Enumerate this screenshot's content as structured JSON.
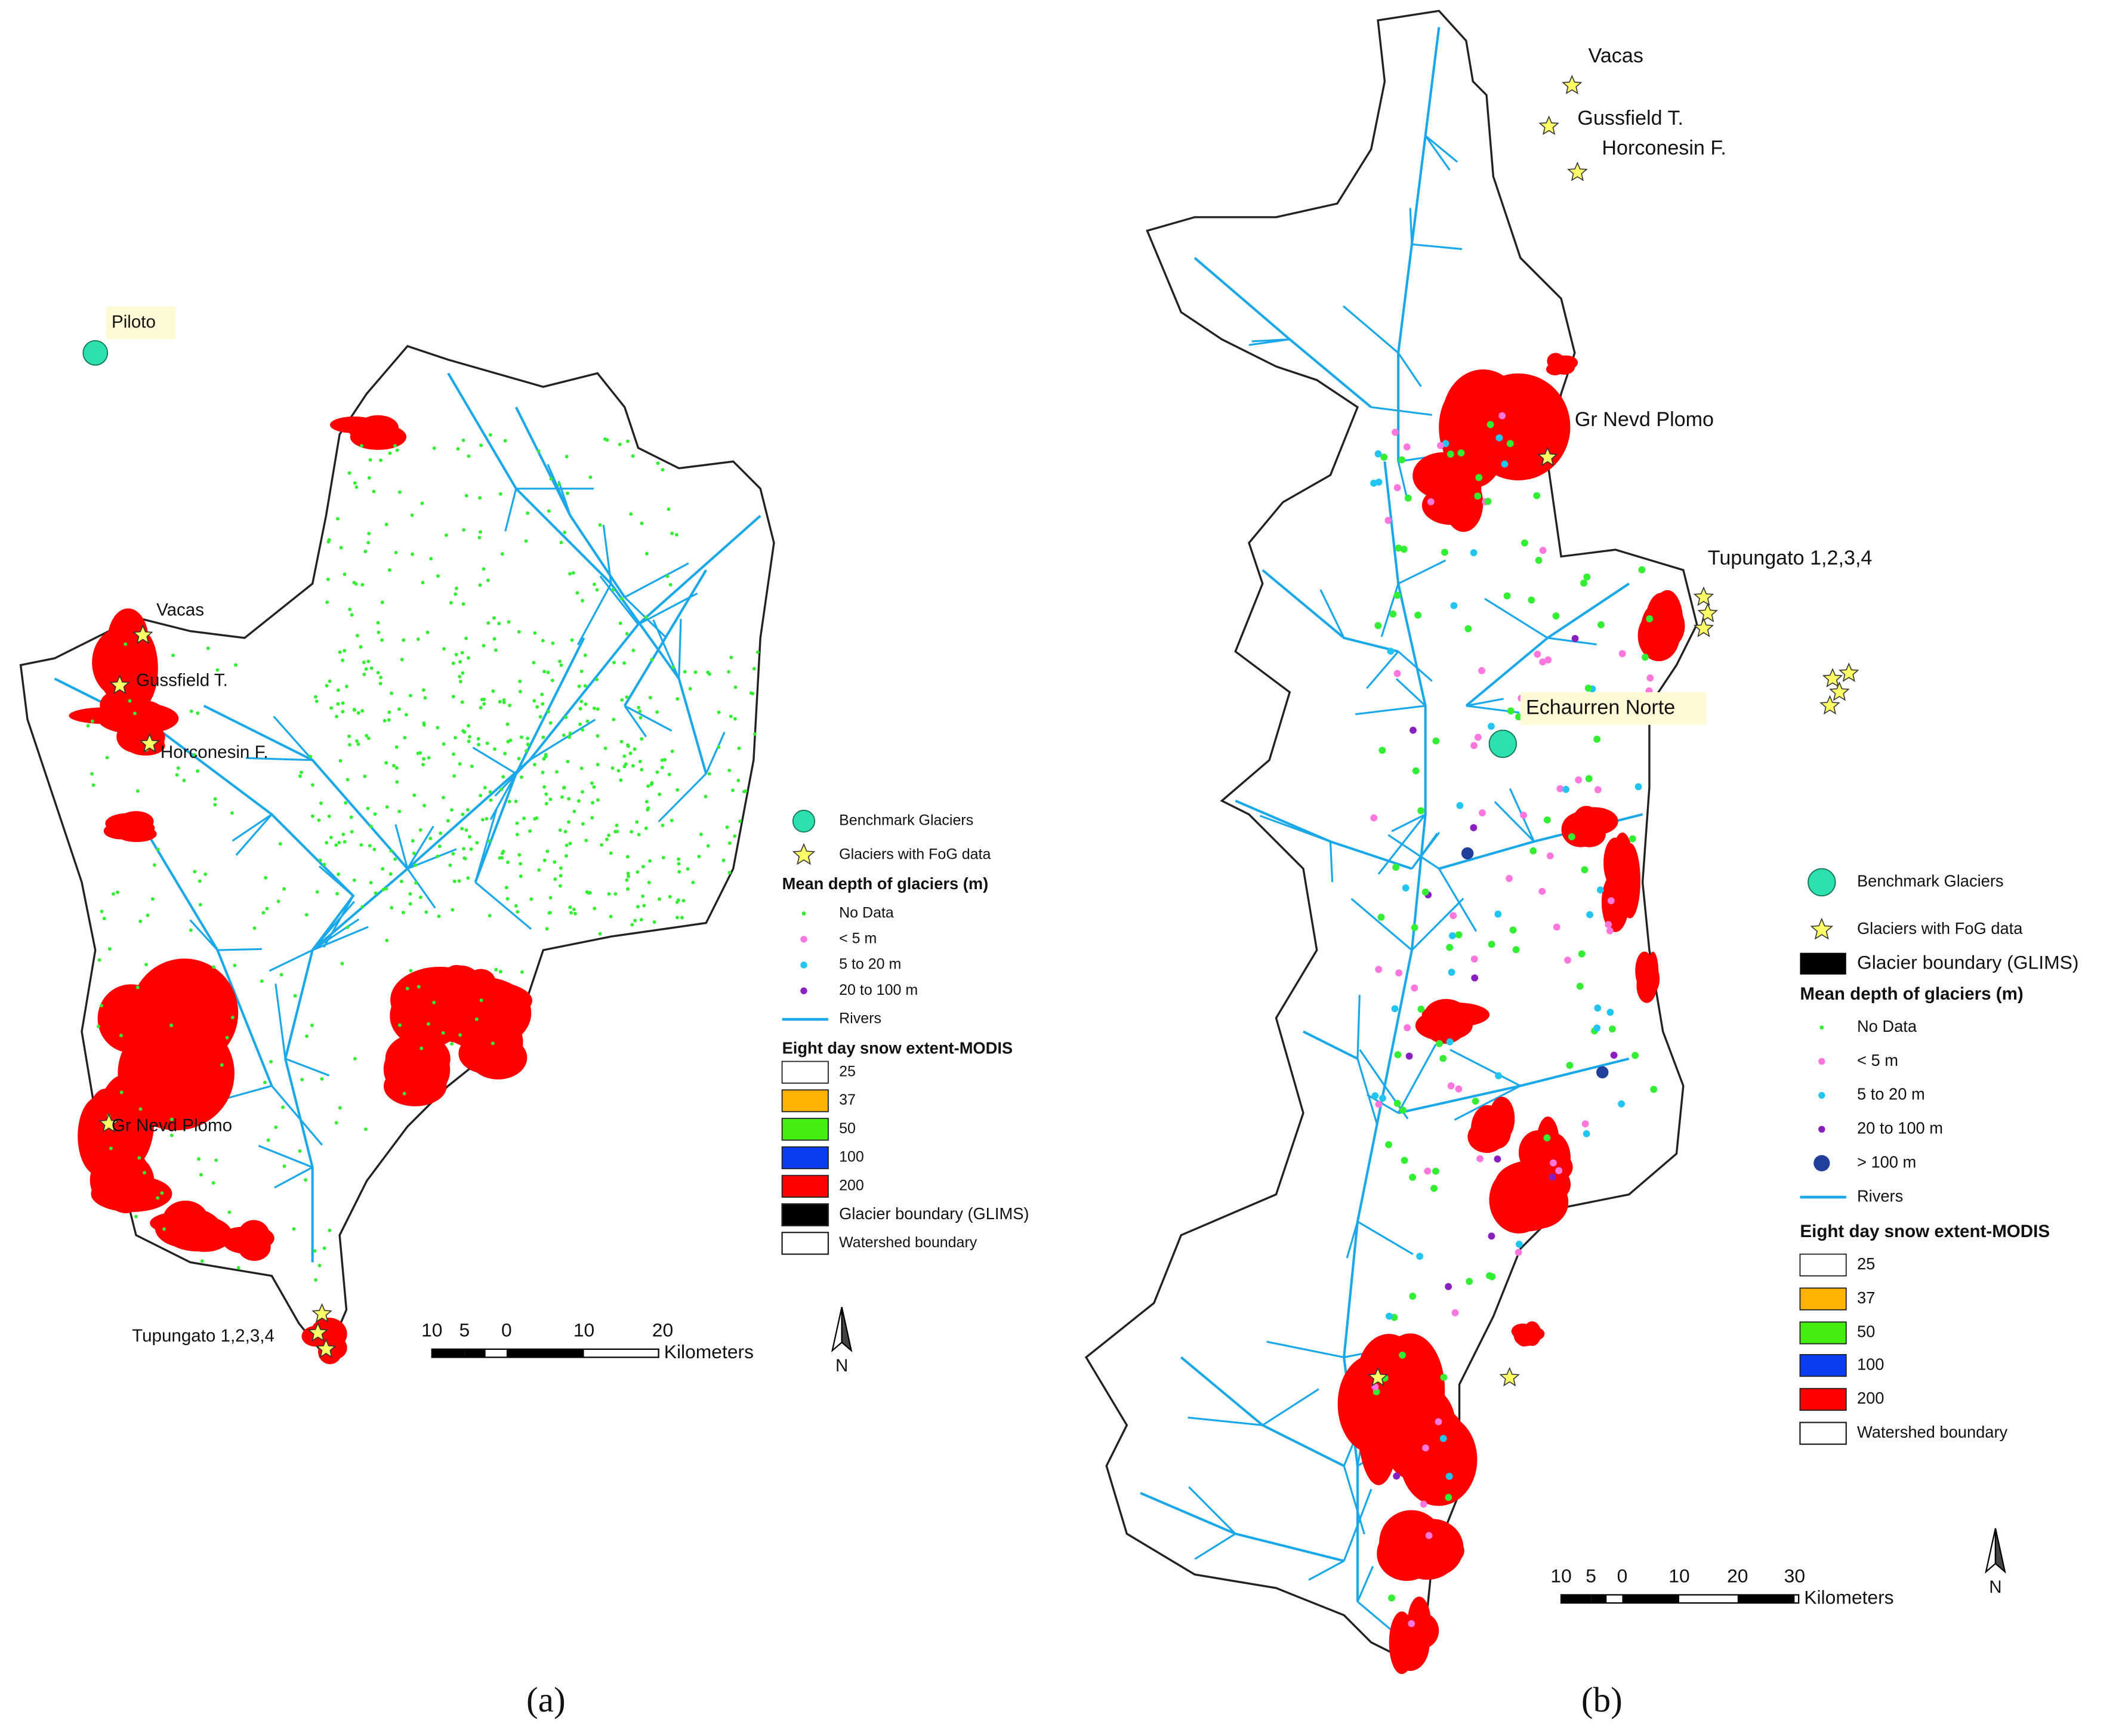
{
  "panels": [
    {
      "caption": "(a)",
      "places": [
        "Piloto",
        "Vacas",
        "Gussfield T.",
        "Horconesin F.",
        "Gr Nevd Plomo",
        "Tupungato 1,2,3,4"
      ],
      "legend": {
        "items": [
          {
            "label": "Benchmark Glaciers",
            "color": "#2ee0b0"
          },
          {
            "label": "Glaciers with FoG data",
            "color": "#ffff66"
          }
        ],
        "depth_title": "Mean depth of glaciers (m)",
        "depth_items": [
          {
            "label": "No Data",
            "color": "#33ee33"
          },
          {
            "label": "< 5 m",
            "color": "#ff77dd"
          },
          {
            "label": "5 to 20 m",
            "color": "#22c5f0"
          },
          {
            "label": "20 to 100 m",
            "color": "#8a1fc0"
          }
        ],
        "rivers": {
          "label": "Rivers",
          "color": "#1aa8e8"
        },
        "snow_title": "Eight day snow extent-MODIS",
        "snow_items": [
          {
            "label": "25",
            "color": "#ffffff"
          },
          {
            "label": "37",
            "color": "#ffb300"
          },
          {
            "label": "50",
            "color": "#44ee11"
          },
          {
            "label": "100",
            "color": "#0a3cf0"
          },
          {
            "label": "200",
            "color": "#ff0000"
          }
        ],
        "boundaries": [
          {
            "label": "Glacier boundary (GLIMS)",
            "color": "#000000"
          },
          {
            "label": "Watershed boundary",
            "color": "#ffffff"
          }
        ]
      },
      "scale": {
        "ticks": [
          "10",
          "5",
          "0",
          "10",
          "20"
        ],
        "unit": "Kilometers"
      },
      "north": "N"
    },
    {
      "caption": "(b)",
      "places": [
        "Vacas",
        "Gussfield T.",
        "Horconesin F.",
        "Gr Nevd Plomo",
        "Tupungato 1,2,3,4",
        "Echaurren Norte"
      ],
      "legend": {
        "items": [
          {
            "label": "Benchmark Glaciers",
            "color": "#2ee0b0"
          },
          {
            "label": "Glaciers with FoG data",
            "color": "#ffff66"
          },
          {
            "label": "Glacier boundary (GLIMS)",
            "color": "#000000"
          }
        ],
        "depth_title": "Mean depth of glaciers (m)",
        "depth_items": [
          {
            "label": "No Data",
            "color": "#33ee33"
          },
          {
            "label": "< 5 m",
            "color": "#ff77dd"
          },
          {
            "label": "5 to 20 m",
            "color": "#22c5f0"
          },
          {
            "label": "20 to 100 m",
            "color": "#8a1fc0"
          },
          {
            "label": "> 100 m",
            "color": "#1f3f9a"
          }
        ],
        "rivers": {
          "label": "Rivers",
          "color": "#1aa8e8"
        },
        "snow_title": "Eight day snow extent-MODIS",
        "snow_items": [
          {
            "label": "25",
            "color": "#ffffff"
          },
          {
            "label": "37",
            "color": "#ffb300"
          },
          {
            "label": "50",
            "color": "#44ee11"
          },
          {
            "label": "100",
            "color": "#0a3cf0"
          },
          {
            "label": "200",
            "color": "#ff0000"
          }
        ],
        "boundaries": [
          {
            "label": "Watershed boundary",
            "color": "#ffffff"
          }
        ]
      },
      "scale": {
        "ticks": [
          "10",
          "5",
          "0",
          "10",
          "20",
          "30"
        ],
        "unit": "Kilometers"
      },
      "north": "N"
    }
  ]
}
